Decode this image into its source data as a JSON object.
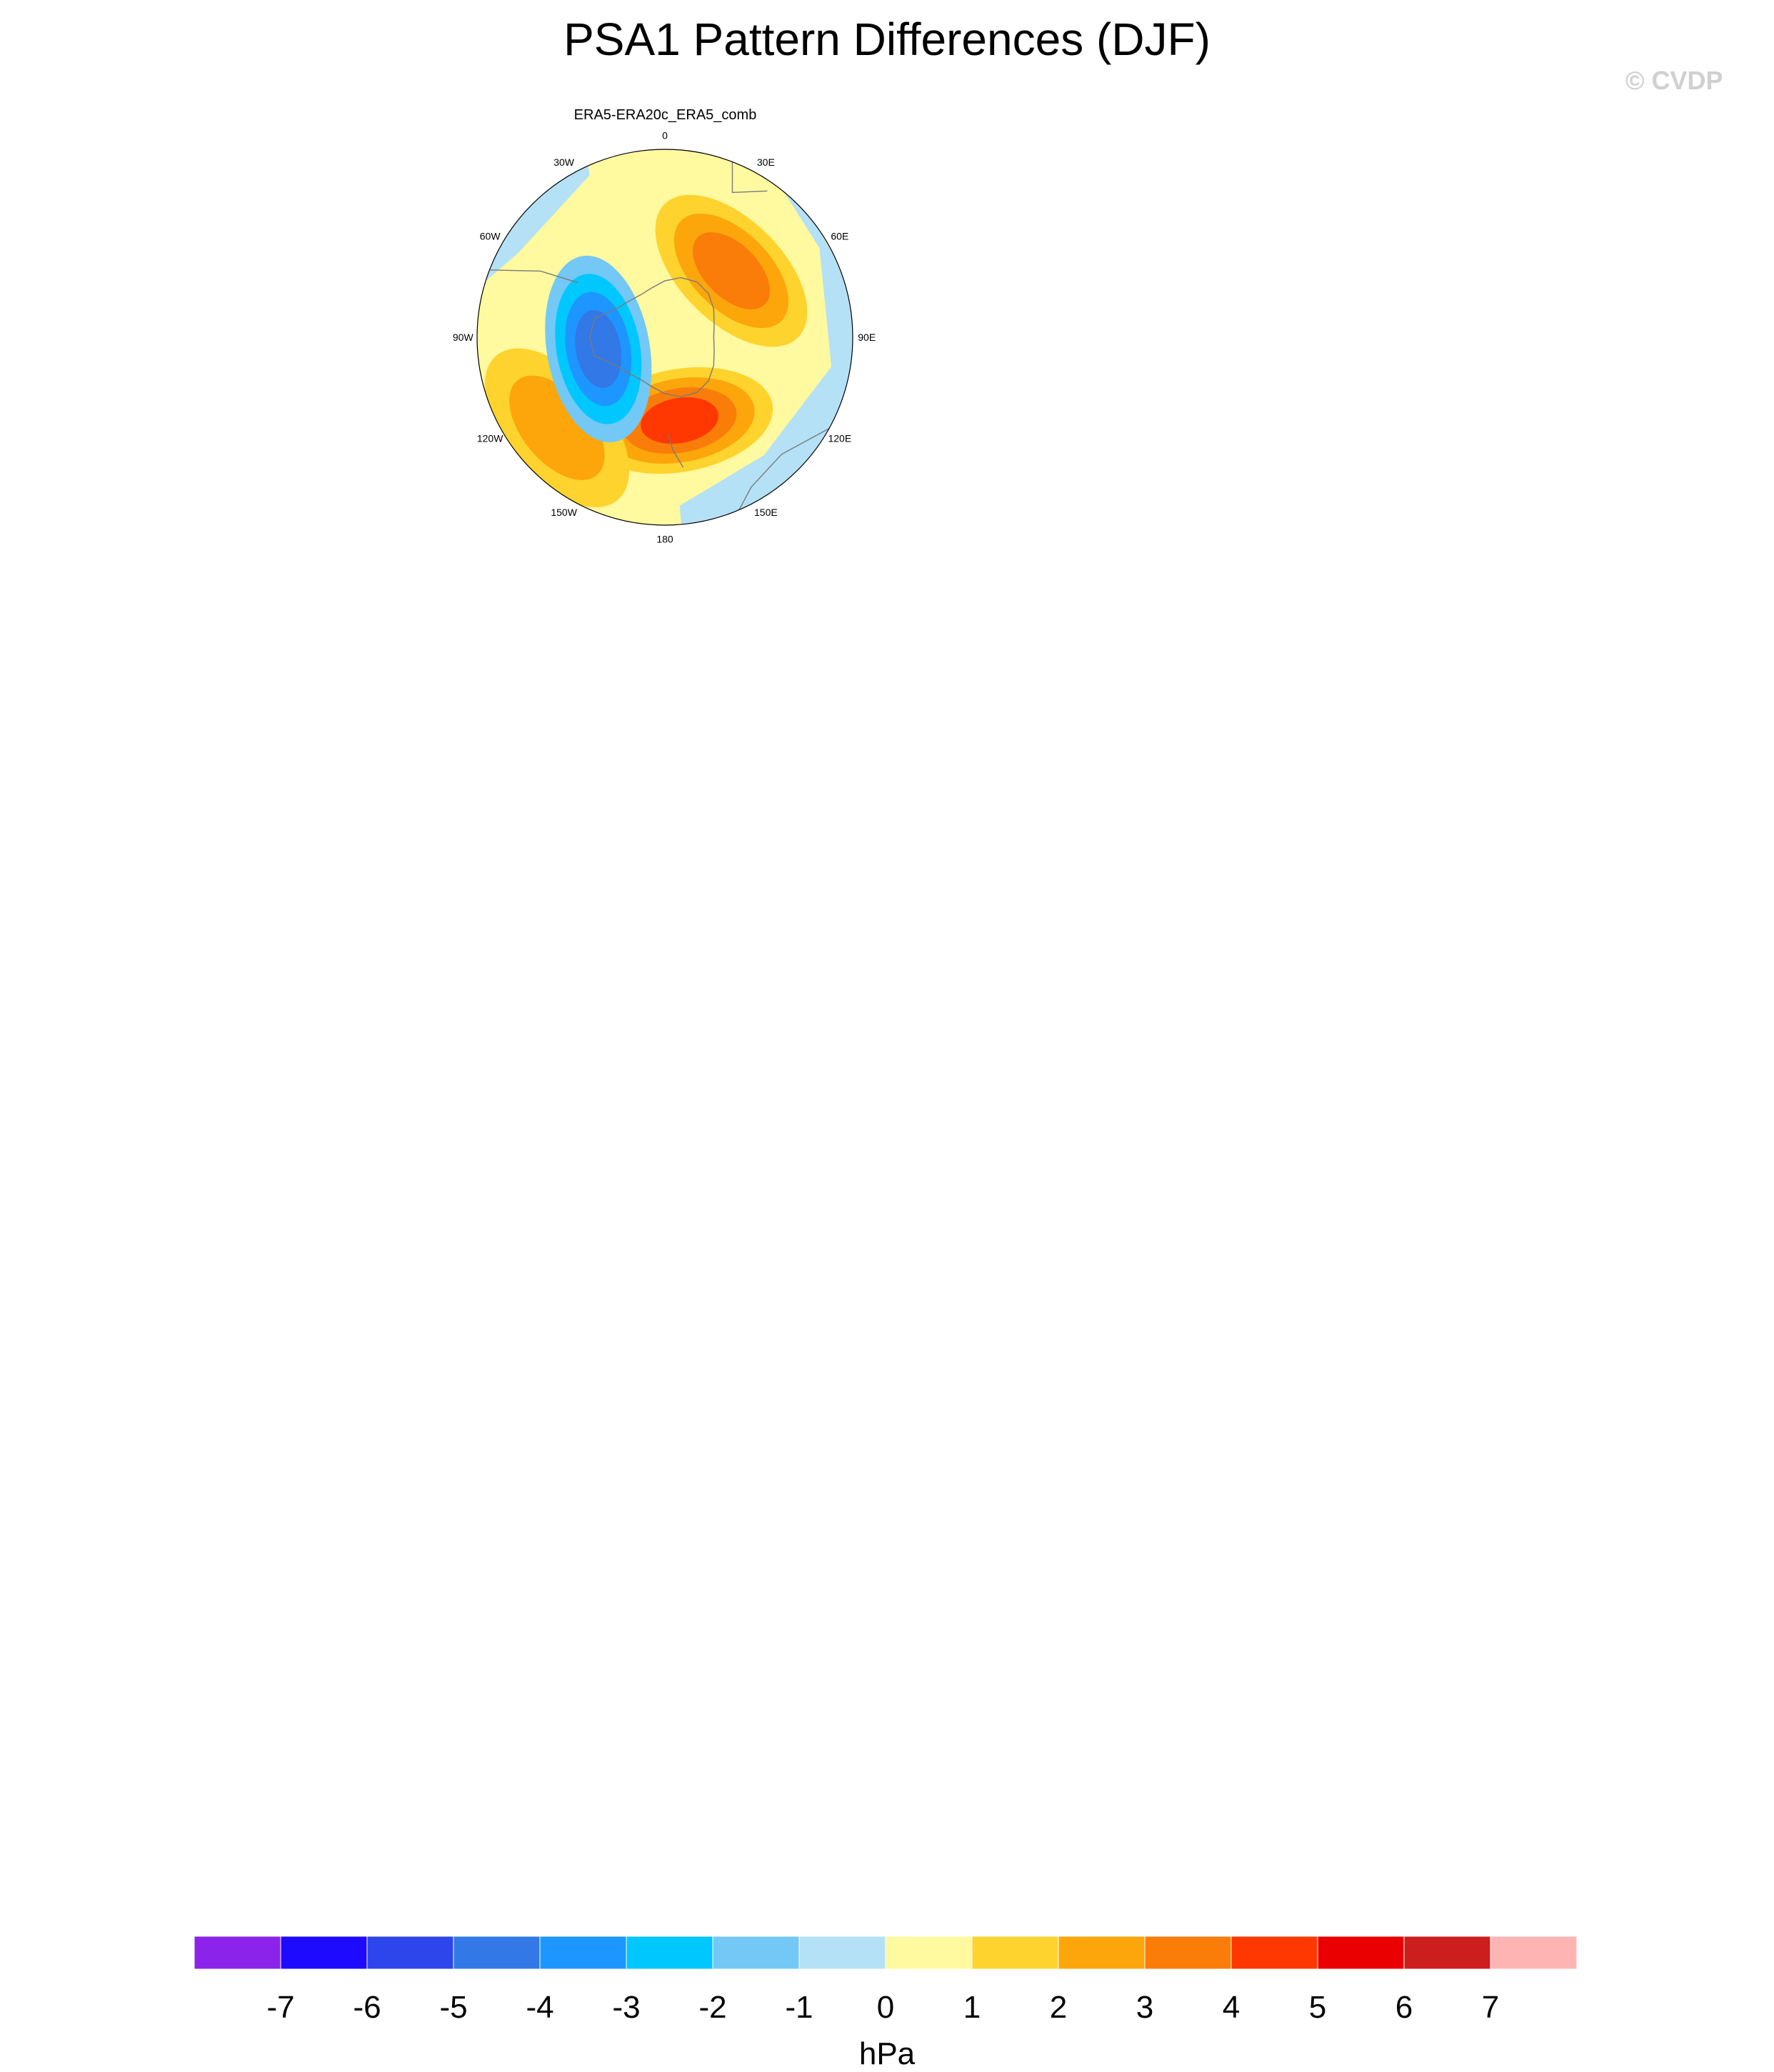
{
  "title": "PSA1 Pattern Differences (DJF)",
  "watermark": "© CVDP",
  "chart_data": {
    "type": "polar-stereographic contour maps",
    "hemisphere": "Southern",
    "longitude_labels": [
      "0",
      "30E",
      "60E",
      "90E",
      "120E",
      "150E",
      "180",
      "150W",
      "120W",
      "90W",
      "60W",
      "30W"
    ],
    "colorbar": {
      "units": "hPa",
      "ticks": [
        -7,
        -6,
        -5,
        -4,
        -3,
        -2,
        -1,
        0,
        1,
        2,
        3,
        4,
        5,
        6,
        7
      ],
      "tick_labels": [
        "-7",
        "-6",
        "-5",
        "-4",
        "-3",
        "-2",
        "-1",
        "0",
        "1",
        "2",
        "3",
        "4",
        "5",
        "6",
        "7"
      ],
      "colors": [
        "#8c23eb",
        "#1e0aff",
        "#2d46eb",
        "#3278e6",
        "#1e96ff",
        "#00c8ff",
        "#73c8f5",
        "#b4e1f5",
        "#fff99f",
        "#fed32e",
        "#fca60b",
        "#fa7d0a",
        "#ff3700",
        "#eb0000",
        "#cd1e1e",
        "#ffb4b4"
      ]
    },
    "panels": [
      {
        "title": "ERA5-ERA20c_ERA5_comb",
        "low": {
          "lon": -100,
          "r": 0.36,
          "v": -3.5
        },
        "highs": [
          {
            "lon": 170,
            "r": 0.45,
            "v": 3.3
          },
          {
            "lon": 45,
            "r": 0.5,
            "v": 2.6
          },
          {
            "lon": -130,
            "r": 0.75,
            "v": 1.6
          }
        ],
        "outer_low": -1
      }
    ]
  }
}
